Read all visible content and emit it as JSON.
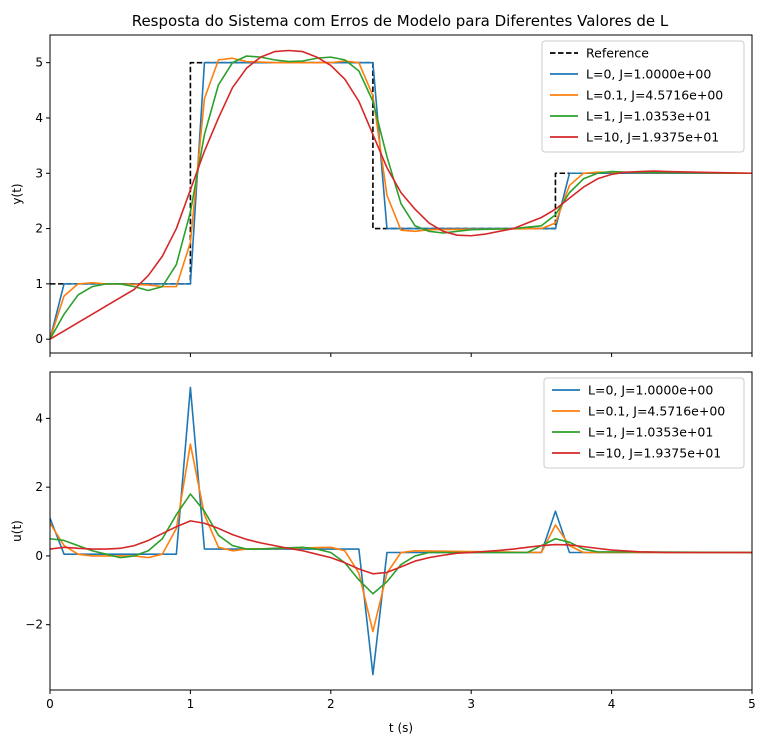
{
  "title": "Resposta do Sistema com Erros de Modelo para Diferentes Valores de L",
  "colors": {
    "L0": "#1f77b4",
    "L01": "#ff7f0e",
    "L1": "#2ca02c",
    "L10": "#d62728",
    "reference": "#000000"
  },
  "chart_data": [
    {
      "type": "line",
      "xlabel": "",
      "ylabel": "y(t)",
      "xlim": [
        0,
        5
      ],
      "ylim": [
        -0.25,
        5.5
      ],
      "xticks": [
        0,
        1,
        2,
        3,
        4,
        5
      ],
      "yticks": [
        0,
        1,
        2,
        3,
        4,
        5
      ],
      "show_x_tick_labels": false,
      "legend": "upper-right",
      "grid": false,
      "series": [
        {
          "name": "Reference",
          "color": "#000000",
          "dash": true,
          "points": [
            [
              0,
              1
            ],
            [
              1,
              1
            ],
            [
              1,
              5
            ],
            [
              2.3,
              5
            ],
            [
              2.3,
              2
            ],
            [
              3.6,
              2
            ],
            [
              3.6,
              3
            ],
            [
              5,
              3
            ]
          ]
        },
        {
          "name": "L=0, J=1.0000e+00",
          "color": "#1f77b4",
          "points": [
            [
              0,
              0
            ],
            [
              0.1,
              1
            ],
            [
              1,
              1
            ],
            [
              1.1,
              5
            ],
            [
              2.3,
              5
            ],
            [
              2.4,
              2
            ],
            [
              3.6,
              2
            ],
            [
              3.7,
              3
            ],
            [
              5,
              3
            ]
          ]
        },
        {
          "name": "L=0.1, J=4.5716e+00",
          "color": "#ff7f0e",
          "points": [
            [
              0,
              0
            ],
            [
              0.1,
              0.78
            ],
            [
              0.2,
              1.0
            ],
            [
              0.3,
              1.02
            ],
            [
              0.4,
              1.0
            ],
            [
              0.6,
              0.99
            ],
            [
              0.7,
              0.98
            ],
            [
              0.8,
              0.95
            ],
            [
              0.9,
              0.95
            ],
            [
              1.0,
              1.75
            ],
            [
              1.1,
              4.35
            ],
            [
              1.2,
              5.05
            ],
            [
              1.3,
              5.08
            ],
            [
              1.4,
              5.02
            ],
            [
              1.6,
              5.0
            ],
            [
              2.0,
              5.0
            ],
            [
              2.1,
              5.03
            ],
            [
              2.2,
              5.0
            ],
            [
              2.3,
              4.4
            ],
            [
              2.4,
              2.6
            ],
            [
              2.5,
              1.97
            ],
            [
              2.6,
              1.95
            ],
            [
              2.7,
              1.98
            ],
            [
              3.5,
              2.0
            ],
            [
              3.6,
              2.1
            ],
            [
              3.7,
              2.78
            ],
            [
              3.8,
              3.0
            ],
            [
              3.9,
              3.02
            ],
            [
              5,
              3.0
            ]
          ]
        },
        {
          "name": "L=1, J=1.0353e+01",
          "color": "#2ca02c",
          "points": [
            [
              0,
              0
            ],
            [
              0.1,
              0.45
            ],
            [
              0.2,
              0.8
            ],
            [
              0.3,
              0.95
            ],
            [
              0.4,
              1.0
            ],
            [
              0.5,
              1.0
            ],
            [
              0.6,
              0.95
            ],
            [
              0.7,
              0.88
            ],
            [
              0.8,
              0.95
            ],
            [
              0.9,
              1.35
            ],
            [
              1.0,
              2.3
            ],
            [
              1.1,
              3.7
            ],
            [
              1.2,
              4.6
            ],
            [
              1.3,
              5.0
            ],
            [
              1.4,
              5.12
            ],
            [
              1.5,
              5.1
            ],
            [
              1.6,
              5.05
            ],
            [
              1.7,
              5.02
            ],
            [
              1.8,
              5.03
            ],
            [
              1.9,
              5.08
            ],
            [
              2.0,
              5.1
            ],
            [
              2.1,
              5.05
            ],
            [
              2.2,
              4.85
            ],
            [
              2.3,
              4.3
            ],
            [
              2.4,
              3.3
            ],
            [
              2.5,
              2.45
            ],
            [
              2.6,
              2.05
            ],
            [
              2.7,
              1.95
            ],
            [
              2.8,
              1.92
            ],
            [
              2.9,
              1.95
            ],
            [
              3.0,
              1.98
            ],
            [
              3.3,
              2.0
            ],
            [
              3.5,
              2.05
            ],
            [
              3.6,
              2.25
            ],
            [
              3.7,
              2.65
            ],
            [
              3.8,
              2.9
            ],
            [
              3.9,
              3.0
            ],
            [
              4.0,
              3.03
            ],
            [
              4.1,
              3.02
            ],
            [
              5,
              3.0
            ]
          ]
        },
        {
          "name": "L=10, J=1.9375e+01",
          "color": "#d62728",
          "points": [
            [
              0,
              0
            ],
            [
              0.1,
              0.15
            ],
            [
              0.2,
              0.3
            ],
            [
              0.3,
              0.45
            ],
            [
              0.4,
              0.6
            ],
            [
              0.5,
              0.75
            ],
            [
              0.6,
              0.9
            ],
            [
              0.7,
              1.15
            ],
            [
              0.8,
              1.5
            ],
            [
              0.9,
              2.0
            ],
            [
              1.0,
              2.7
            ],
            [
              1.1,
              3.4
            ],
            [
              1.2,
              4.0
            ],
            [
              1.3,
              4.55
            ],
            [
              1.4,
              4.9
            ],
            [
              1.5,
              5.1
            ],
            [
              1.6,
              5.2
            ],
            [
              1.7,
              5.22
            ],
            [
              1.8,
              5.2
            ],
            [
              1.9,
              5.1
            ],
            [
              2.0,
              4.95
            ],
            [
              2.1,
              4.7
            ],
            [
              2.2,
              4.3
            ],
            [
              2.3,
              3.7
            ],
            [
              2.4,
              3.1
            ],
            [
              2.5,
              2.65
            ],
            [
              2.6,
              2.35
            ],
            [
              2.7,
              2.1
            ],
            [
              2.8,
              1.95
            ],
            [
              2.9,
              1.88
            ],
            [
              3.0,
              1.87
            ],
            [
              3.1,
              1.9
            ],
            [
              3.2,
              1.95
            ],
            [
              3.3,
              2.0
            ],
            [
              3.4,
              2.1
            ],
            [
              3.5,
              2.2
            ],
            [
              3.6,
              2.35
            ],
            [
              3.7,
              2.55
            ],
            [
              3.8,
              2.75
            ],
            [
              3.9,
              2.9
            ],
            [
              4.0,
              2.98
            ],
            [
              4.1,
              3.02
            ],
            [
              4.2,
              3.03
            ],
            [
              4.3,
              3.04
            ],
            [
              4.4,
              3.03
            ],
            [
              4.6,
              3.02
            ],
            [
              5,
              3.0
            ]
          ]
        }
      ]
    },
    {
      "type": "line",
      "xlabel": "t (s)",
      "ylabel": "u(t)",
      "xlim": [
        0,
        5
      ],
      "ylim": [
        -3.9,
        5.35
      ],
      "xticks": [
        0,
        1,
        2,
        3,
        4,
        5
      ],
      "yticks": [
        -2,
        0,
        2,
        4
      ],
      "show_x_tick_labels": true,
      "legend": "upper-right",
      "grid": false,
      "series": [
        {
          "name": "L=0, J=1.0000e+00",
          "color": "#1f77b4",
          "points": [
            [
              0,
              1.1
            ],
            [
              0.1,
              0.05
            ],
            [
              0.9,
              0.05
            ],
            [
              1.0,
              4.9
            ],
            [
              1.1,
              0.2
            ],
            [
              2.2,
              0.2
            ],
            [
              2.3,
              -3.45
            ],
            [
              2.4,
              0.1
            ],
            [
              3.5,
              0.1
            ],
            [
              3.6,
              1.3
            ],
            [
              3.7,
              0.1
            ],
            [
              5,
              0.1
            ]
          ]
        },
        {
          "name": "L=0.1, J=4.5716e+00",
          "color": "#ff7f0e",
          "points": [
            [
              0,
              0.95
            ],
            [
              0.1,
              0.3
            ],
            [
              0.2,
              0.05
            ],
            [
              0.3,
              0.0
            ],
            [
              0.6,
              0.0
            ],
            [
              0.7,
              -0.05
            ],
            [
              0.8,
              0.05
            ],
            [
              0.9,
              0.8
            ],
            [
              1.0,
              3.25
            ],
            [
              1.1,
              1.2
            ],
            [
              1.2,
              0.25
            ],
            [
              1.3,
              0.15
            ],
            [
              1.4,
              0.2
            ],
            [
              2.0,
              0.25
            ],
            [
              2.1,
              0.15
            ],
            [
              2.2,
              -0.5
            ],
            [
              2.3,
              -2.2
            ],
            [
              2.4,
              -0.5
            ],
            [
              2.5,
              0.1
            ],
            [
              2.6,
              0.15
            ],
            [
              3.5,
              0.1
            ],
            [
              3.6,
              0.9
            ],
            [
              3.7,
              0.3
            ],
            [
              3.8,
              0.1
            ],
            [
              5,
              0.1
            ]
          ]
        },
        {
          "name": "L=1, J=1.0353e+01",
          "color": "#2ca02c",
          "points": [
            [
              0,
              0.5
            ],
            [
              0.1,
              0.45
            ],
            [
              0.2,
              0.3
            ],
            [
              0.3,
              0.15
            ],
            [
              0.4,
              0.05
            ],
            [
              0.5,
              -0.05
            ],
            [
              0.6,
              0.0
            ],
            [
              0.7,
              0.15
            ],
            [
              0.8,
              0.5
            ],
            [
              0.9,
              1.2
            ],
            [
              1.0,
              1.8
            ],
            [
              1.1,
              1.3
            ],
            [
              1.2,
              0.6
            ],
            [
              1.3,
              0.3
            ],
            [
              1.4,
              0.2
            ],
            [
              1.5,
              0.2
            ],
            [
              1.6,
              0.22
            ],
            [
              1.8,
              0.25
            ],
            [
              1.9,
              0.2
            ],
            [
              2.0,
              0.1
            ],
            [
              2.1,
              -0.2
            ],
            [
              2.2,
              -0.7
            ],
            [
              2.3,
              -1.1
            ],
            [
              2.4,
              -0.75
            ],
            [
              2.5,
              -0.25
            ],
            [
              2.6,
              0.0
            ],
            [
              2.7,
              0.1
            ],
            [
              3.4,
              0.1
            ],
            [
              3.5,
              0.3
            ],
            [
              3.6,
              0.5
            ],
            [
              3.7,
              0.4
            ],
            [
              3.8,
              0.2
            ],
            [
              3.9,
              0.12
            ],
            [
              5,
              0.1
            ]
          ]
        },
        {
          "name": "L=10, J=1.9375e+01",
          "color": "#d62728",
          "points": [
            [
              0,
              0.2
            ],
            [
              0.1,
              0.25
            ],
            [
              0.2,
              0.22
            ],
            [
              0.3,
              0.2
            ],
            [
              0.4,
              0.2
            ],
            [
              0.5,
              0.22
            ],
            [
              0.6,
              0.3
            ],
            [
              0.7,
              0.45
            ],
            [
              0.8,
              0.65
            ],
            [
              0.9,
              0.85
            ],
            [
              1.0,
              1.02
            ],
            [
              1.1,
              0.95
            ],
            [
              1.2,
              0.8
            ],
            [
              1.3,
              0.62
            ],
            [
              1.4,
              0.48
            ],
            [
              1.5,
              0.38
            ],
            [
              1.6,
              0.3
            ],
            [
              1.7,
              0.22
            ],
            [
              1.8,
              0.15
            ],
            [
              1.9,
              0.05
            ],
            [
              2.0,
              -0.05
            ],
            [
              2.1,
              -0.2
            ],
            [
              2.2,
              -0.38
            ],
            [
              2.3,
              -0.52
            ],
            [
              2.4,
              -0.48
            ],
            [
              2.5,
              -0.32
            ],
            [
              2.6,
              -0.15
            ],
            [
              2.7,
              -0.05
            ],
            [
              2.8,
              0.02
            ],
            [
              2.9,
              0.08
            ],
            [
              3.0,
              0.1
            ],
            [
              3.1,
              0.13
            ],
            [
              3.2,
              0.16
            ],
            [
              3.3,
              0.2
            ],
            [
              3.4,
              0.25
            ],
            [
              3.5,
              0.3
            ],
            [
              3.6,
              0.33
            ],
            [
              3.7,
              0.32
            ],
            [
              3.8,
              0.27
            ],
            [
              3.9,
              0.22
            ],
            [
              4.0,
              0.17
            ],
            [
              4.2,
              0.12
            ],
            [
              4.4,
              0.1
            ],
            [
              5,
              0.1
            ]
          ]
        }
      ]
    }
  ]
}
